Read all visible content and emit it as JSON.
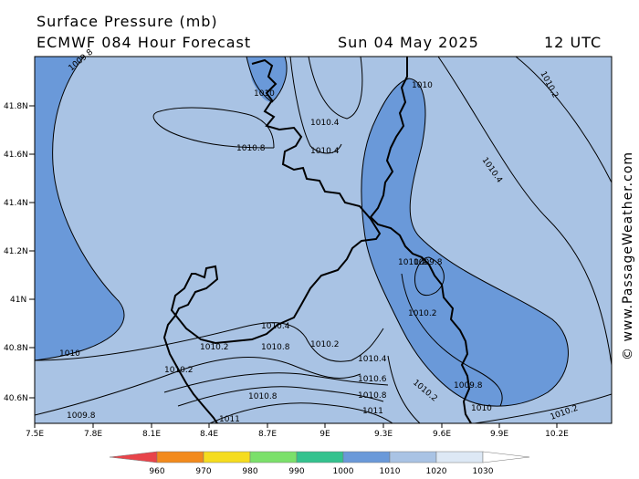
{
  "header": {
    "title": "Surface Pressure (mb)",
    "model_line": "ECMWF 084 Hour Forecast",
    "date": "Sun 04 May 2025",
    "time": "12 UTC"
  },
  "credit": "© www.PassageWeather.com",
  "axes": {
    "lat_ticks": [
      "41.8N",
      "41.6N",
      "41.4N",
      "41.2N",
      "41N",
      "40.8N",
      "40.6N"
    ],
    "lon_ticks": [
      "7.5E",
      "7.8E",
      "8.1E",
      "8.4E",
      "8.7E",
      "9E",
      "9.3E",
      "9.6E",
      "9.9E",
      "10.2E"
    ],
    "lat_range": [
      40.5,
      42.0
    ],
    "lon_range": [
      7.5,
      10.5
    ]
  },
  "isobar_labels": [
    "1009.8",
    "1010",
    "1010",
    "1010.2",
    "1010.4",
    "1010.8",
    "1010.4",
    "1010.4",
    "1010.2",
    "1010.2",
    "1010",
    "1010.4",
    "1010.2",
    "1010.8",
    "1010.2",
    "1010.4",
    "1010.6",
    "1010.8",
    "1011",
    "1010.2",
    "1010.8",
    "1011",
    "1010.2",
    "1009.8",
    "1009.8",
    "1010.2",
    "1009.8",
    "1010"
  ],
  "colorbar": {
    "labels": [
      "960",
      "970",
      "980",
      "990",
      "1000",
      "1010",
      "1020",
      "1030"
    ],
    "colors": [
      "#e8444a",
      "#f28a1c",
      "#f5dc1e",
      "#7be06a",
      "#33c28e",
      "#6a99d9",
      "#a9c3e4",
      "#dde8f5"
    ]
  },
  "fill_colors": {
    "low": "#6a99d9",
    "mid": "#a9c3e4"
  }
}
